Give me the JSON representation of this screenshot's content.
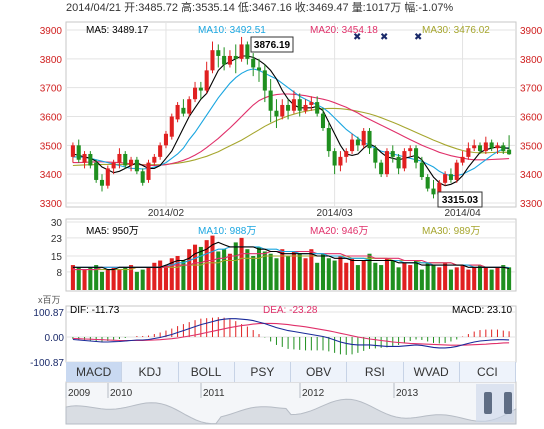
{
  "header": {
    "date": "2014/04/21",
    "open_label": "开:",
    "open": "3485.72",
    "high_label": "高:",
    "high": "3535.14",
    "low_label": "低:",
    "low": "3467.16",
    "close_label": "收:",
    "close": "3469.47",
    "volume_label": "量:",
    "volume": "1017万",
    "change_label": "幅:",
    "change": "-1.07%"
  },
  "price_legend": [
    {
      "label": "MA5: 3489.17",
      "color": "#000000"
    },
    {
      "label": "MA10: 3492.51",
      "color": "#1aa6e0"
    },
    {
      "label": "MA20: 3454.18",
      "color": "#e0306a"
    },
    {
      "label": "MA30: 3476.02",
      "color": "#a6a62e"
    }
  ],
  "volume_legend": [
    {
      "label": "MA5: 950万",
      "color": "#000000"
    },
    {
      "label": "MA10: 988万",
      "color": "#1aa6e0"
    },
    {
      "label": "MA20: 946万",
      "color": "#e0306a"
    },
    {
      "label": "MA30: 989万",
      "color": "#a6a62e"
    }
  ],
  "macd_legend": {
    "unit": "x百万",
    "dif": "DIF: -11.73",
    "dea": "DEA: -23.28",
    "macd": "MACD: 23.10"
  },
  "chart_data": {
    "type": "candlestick",
    "price_axis": {
      "ylim": [
        3300,
        3900
      ],
      "ticks": [
        3300,
        3400,
        3500,
        3600,
        3700,
        3800,
        3900
      ]
    },
    "x_ticks": [
      "2014/02",
      "2014/03",
      "2014/04"
    ],
    "annotations": {
      "max": "3876.19",
      "min": "3315.03"
    },
    "colors": {
      "up": "#e02020",
      "down": "#1f8f1f"
    },
    "candles": [
      [
        3460,
        3500,
        3440,
        3510
      ],
      [
        3500,
        3450,
        3440,
        3520
      ],
      [
        3440,
        3470,
        3420,
        3480
      ],
      [
        3470,
        3430,
        3420,
        3480
      ],
      [
        3440,
        3380,
        3370,
        3450
      ],
      [
        3380,
        3360,
        3340,
        3400
      ],
      [
        3360,
        3420,
        3350,
        3430
      ],
      [
        3420,
        3440,
        3400,
        3450
      ],
      [
        3440,
        3470,
        3420,
        3490
      ],
      [
        3470,
        3430,
        3420,
        3480
      ],
      [
        3430,
        3450,
        3410,
        3460
      ],
      [
        3450,
        3410,
        3400,
        3460
      ],
      [
        3410,
        3370,
        3360,
        3420
      ],
      [
        3380,
        3440,
        3370,
        3450
      ],
      [
        3440,
        3460,
        3430,
        3470
      ],
      [
        3460,
        3500,
        3450,
        3510
      ],
      [
        3500,
        3540,
        3490,
        3550
      ],
      [
        3530,
        3600,
        3520,
        3610
      ],
      [
        3590,
        3640,
        3580,
        3650
      ],
      [
        3630,
        3610,
        3600,
        3660
      ],
      [
        3610,
        3660,
        3600,
        3670
      ],
      [
        3660,
        3700,
        3650,
        3720
      ],
      [
        3700,
        3690,
        3660,
        3720
      ],
      [
        3690,
        3760,
        3680,
        3790
      ],
      [
        3760,
        3830,
        3750,
        3860
      ],
      [
        3830,
        3810,
        3770,
        3850
      ],
      [
        3810,
        3780,
        3760,
        3840
      ],
      [
        3780,
        3810,
        3770,
        3830
      ],
      [
        3810,
        3800,
        3750,
        3850
      ],
      [
        3800,
        3850,
        3790,
        3876
      ],
      [
        3850,
        3800,
        3780,
        3860
      ],
      [
        3800,
        3770,
        3740,
        3820
      ],
      [
        3770,
        3760,
        3720,
        3800
      ],
      [
        3760,
        3690,
        3650,
        3780
      ],
      [
        3690,
        3620,
        3580,
        3730
      ],
      [
        3620,
        3600,
        3560,
        3660
      ],
      [
        3600,
        3640,
        3590,
        3660
      ],
      [
        3640,
        3620,
        3590,
        3660
      ],
      [
        3620,
        3660,
        3610,
        3690
      ],
      [
        3660,
        3620,
        3600,
        3680
      ],
      [
        3620,
        3640,
        3610,
        3660
      ],
      [
        3640,
        3650,
        3620,
        3670
      ],
      [
        3650,
        3610,
        3600,
        3670
      ],
      [
        3610,
        3560,
        3550,
        3630
      ],
      [
        3560,
        3480,
        3460,
        3580
      ],
      [
        3480,
        3430,
        3400,
        3490
      ],
      [
        3430,
        3460,
        3410,
        3480
      ],
      [
        3460,
        3480,
        3440,
        3490
      ],
      [
        3480,
        3520,
        3470,
        3540
      ],
      [
        3520,
        3500,
        3480,
        3530
      ],
      [
        3500,
        3550,
        3490,
        3560
      ],
      [
        3550,
        3490,
        3470,
        3560
      ],
      [
        3490,
        3440,
        3420,
        3500
      ],
      [
        3440,
        3400,
        3390,
        3450
      ],
      [
        3400,
        3480,
        3390,
        3490
      ],
      [
        3480,
        3460,
        3440,
        3500
      ],
      [
        3460,
        3420,
        3400,
        3470
      ],
      [
        3420,
        3480,
        3410,
        3490
      ],
      [
        3480,
        3490,
        3460,
        3500
      ],
      [
        3490,
        3440,
        3420,
        3500
      ],
      [
        3440,
        3390,
        3380,
        3460
      ],
      [
        3390,
        3350,
        3340,
        3400
      ],
      [
        3350,
        3330,
        3316,
        3380
      ],
      [
        3330,
        3370,
        3320,
        3380
      ],
      [
        3370,
        3400,
        3360,
        3410
      ],
      [
        3400,
        3380,
        3370,
        3420
      ],
      [
        3380,
        3440,
        3370,
        3450
      ],
      [
        3440,
        3460,
        3430,
        3480
      ],
      [
        3460,
        3490,
        3450,
        3510
      ],
      [
        3490,
        3500,
        3480,
        3520
      ],
      [
        3500,
        3480,
        3470,
        3510
      ],
      [
        3480,
        3510,
        3470,
        3530
      ],
      [
        3510,
        3490,
        3480,
        3520
      ],
      [
        3490,
        3500,
        3470,
        3510
      ],
      [
        3500,
        3480,
        3470,
        3510
      ],
      [
        3485,
        3469,
        3467,
        3535
      ]
    ],
    "ma5": [
      3470,
      3465,
      3460,
      3455,
      3445,
      3425,
      3415,
      3405,
      3410,
      3420,
      3430,
      3440,
      3430,
      3420,
      3420,
      3430,
      3455,
      3480,
      3520,
      3560,
      3600,
      3630,
      3660,
      3680,
      3720,
      3760,
      3780,
      3790,
      3800,
      3810,
      3810,
      3805,
      3795,
      3780,
      3760,
      3730,
      3690,
      3660,
      3640,
      3630,
      3630,
      3630,
      3635,
      3620,
      3580,
      3540,
      3500,
      3470,
      3465,
      3470,
      3490,
      3505,
      3495,
      3475,
      3460,
      3455,
      3450,
      3455,
      3460,
      3465,
      3450,
      3420,
      3390,
      3370,
      3360,
      3365,
      3375,
      3395,
      3425,
      3450,
      3475,
      3485,
      3490,
      3495,
      3492,
      3489
    ],
    "ma10": [
      3460,
      3460,
      3458,
      3455,
      3450,
      3445,
      3440,
      3435,
      3430,
      3425,
      3420,
      3420,
      3418,
      3420,
      3425,
      3430,
      3440,
      3455,
      3470,
      3490,
      3520,
      3545,
      3575,
      3605,
      3635,
      3665,
      3690,
      3715,
      3735,
      3750,
      3760,
      3765,
      3760,
      3750,
      3740,
      3730,
      3715,
      3700,
      3685,
      3670,
      3660,
      3650,
      3640,
      3630,
      3615,
      3595,
      3575,
      3555,
      3540,
      3525,
      3510,
      3500,
      3490,
      3480,
      3475,
      3470,
      3465,
      3460,
      3455,
      3450,
      3445,
      3435,
      3425,
      3410,
      3400,
      3395,
      3395,
      3400,
      3410,
      3420,
      3435,
      3450,
      3465,
      3478,
      3488,
      3492
    ],
    "ma20": [
      3440,
      3440,
      3441,
      3442,
      3443,
      3443,
      3442,
      3441,
      3440,
      3438,
      3436,
      3434,
      3432,
      3430,
      3430,
      3431,
      3433,
      3437,
      3442,
      3448,
      3456,
      3466,
      3478,
      3492,
      3508,
      3524,
      3542,
      3560,
      3580,
      3600,
      3620,
      3640,
      3655,
      3665,
      3672,
      3676,
      3678,
      3678,
      3677,
      3675,
      3672,
      3668,
      3664,
      3660,
      3655,
      3648,
      3640,
      3632,
      3622,
      3612,
      3600,
      3590,
      3580,
      3570,
      3560,
      3550,
      3540,
      3530,
      3520,
      3510,
      3500,
      3492,
      3484,
      3476,
      3470,
      3464,
      3460,
      3456,
      3452,
      3450,
      3450,
      3450,
      3451,
      3452,
      3453,
      3454
    ],
    "ma30": [
      3430,
      3431,
      3432,
      3433,
      3433,
      3434,
      3434,
      3434,
      3434,
      3434,
      3434,
      3434,
      3433,
      3433,
      3433,
      3433,
      3434,
      3436,
      3438,
      3441,
      3445,
      3450,
      3456,
      3462,
      3470,
      3478,
      3488,
      3498,
      3508,
      3518,
      3530,
      3542,
      3554,
      3566,
      3576,
      3586,
      3594,
      3602,
      3608,
      3614,
      3618,
      3622,
      3625,
      3627,
      3628,
      3628,
      3627,
      3625,
      3622,
      3618,
      3614,
      3609,
      3603,
      3596,
      3588,
      3580,
      3572,
      3563,
      3554,
      3545,
      3536,
      3527,
      3518,
      3510,
      3502,
      3495,
      3488,
      3482,
      3478,
      3475,
      3474,
      3474,
      3475,
      3476,
      3476,
      3476
    ],
    "volume_axis": {
      "ylim": [
        0,
        30
      ],
      "ticks": [
        8,
        15,
        23,
        30
      ]
    },
    "volumes": [
      11,
      10,
      9,
      10,
      11,
      8,
      9,
      10,
      9,
      10,
      11,
      8,
      9,
      10,
      12,
      13,
      11,
      14,
      15,
      13,
      18,
      20,
      19,
      22,
      24,
      17,
      18,
      16,
      21,
      23,
      18,
      15,
      19,
      17,
      16,
      14,
      18,
      15,
      17,
      16,
      14,
      18,
      12,
      16,
      14,
      13,
      15,
      12,
      14,
      11,
      13,
      16,
      12,
      11,
      14,
      13,
      10,
      12,
      11,
      13,
      9,
      12,
      11,
      10,
      12,
      9,
      10,
      11,
      9,
      10,
      11,
      10,
      9,
      10,
      11,
      10
    ],
    "vol_ma5": [
      10,
      10,
      10,
      10,
      10,
      10,
      9,
      9,
      10,
      10,
      10,
      10,
      10,
      10,
      10,
      10,
      11,
      12,
      13,
      13,
      14,
      16,
      17,
      18,
      20,
      21,
      20,
      19,
      19,
      19,
      19,
      19,
      18,
      18,
      17,
      17,
      16,
      16,
      16,
      16,
      16,
      16,
      15,
      15,
      15,
      14,
      14,
      14,
      13,
      13,
      13,
      13,
      13,
      13,
      13,
      13,
      12,
      12,
      12,
      12,
      11,
      11,
      11,
      11,
      11,
      11,
      11,
      11,
      10,
      10,
      10,
      10,
      10,
      10,
      10,
      9.5
    ],
    "vol_ma10": [
      10,
      10,
      10,
      10,
      10,
      10,
      10,
      10,
      10,
      10,
      10,
      10,
      10,
      10,
      10,
      10,
      11,
      11,
      12,
      12,
      13,
      14,
      15,
      16,
      17,
      18,
      18,
      19,
      19,
      19,
      19,
      19,
      19,
      18,
      18,
      18,
      17,
      17,
      17,
      16,
      16,
      16,
      16,
      16,
      15,
      15,
      15,
      14,
      14,
      14,
      14,
      13,
      13,
      13,
      13,
      13,
      13,
      12,
      12,
      12,
      12,
      12,
      11,
      11,
      11,
      11,
      11,
      11,
      11,
      10,
      10,
      10,
      10,
      10,
      10,
      9.9
    ],
    "vol_ma20": [
      9,
      9,
      9,
      9,
      9,
      10,
      10,
      10,
      10,
      10,
      10,
      10,
      10,
      10,
      10,
      10,
      10,
      11,
      11,
      11,
      11,
      12,
      12,
      13,
      13,
      14,
      14,
      15,
      15,
      16,
      16,
      16,
      16,
      16,
      17,
      17,
      17,
      17,
      17,
      17,
      17,
      17,
      16,
      16,
      16,
      16,
      16,
      15,
      15,
      15,
      15,
      15,
      14,
      14,
      14,
      14,
      14,
      13,
      13,
      13,
      13,
      12,
      12,
      12,
      12,
      12,
      11,
      11,
      11,
      11,
      11,
      10,
      10,
      10,
      10,
      9.5
    ],
    "vol_ma30": [
      9,
      9,
      9,
      9,
      9,
      9,
      9,
      9,
      9,
      9,
      9,
      10,
      10,
      10,
      10,
      10,
      10,
      10,
      10,
      11,
      11,
      11,
      11,
      12,
      12,
      12,
      13,
      13,
      13,
      14,
      14,
      14,
      14,
      15,
      15,
      15,
      15,
      15,
      15,
      15,
      15,
      15,
      15,
      15,
      15,
      15,
      15,
      15,
      14,
      14,
      14,
      14,
      14,
      14,
      14,
      13,
      13,
      13,
      13,
      13,
      12,
      12,
      12,
      12,
      12,
      12,
      11,
      11,
      11,
      11,
      11,
      10,
      10,
      10,
      10,
      9.9
    ],
    "macd_axis": {
      "ylim": [
        -100.87,
        100.87
      ],
      "ticks": [
        "100.87",
        "0.00",
        "-100.87"
      ]
    },
    "dif": [
      -10,
      -12,
      -14,
      -16,
      -18,
      -20,
      -20,
      -19,
      -18,
      -16,
      -14,
      -12,
      -12,
      -10,
      -6,
      -2,
      4,
      10,
      18,
      26,
      34,
      42,
      50,
      56,
      62,
      68,
      72,
      74,
      74,
      72,
      70,
      66,
      60,
      54,
      46,
      38,
      32,
      26,
      22,
      18,
      14,
      10,
      6,
      2,
      -4,
      -12,
      -20,
      -26,
      -30,
      -32,
      -32,
      -32,
      -34,
      -36,
      -38,
      -38,
      -38,
      -36,
      -34,
      -32,
      -34,
      -38,
      -42,
      -44,
      -44,
      -42,
      -38,
      -32,
      -26,
      -20,
      -16,
      -14,
      -12,
      -11,
      -11,
      -11.73
    ],
    "dea": [
      -6,
      -7,
      -8,
      -9,
      -10,
      -11,
      -12,
      -13,
      -14,
      -14,
      -14,
      -14,
      -14,
      -13,
      -12,
      -11,
      -9,
      -7,
      -4,
      0,
      4,
      8,
      13,
      18,
      23,
      28,
      33,
      38,
      42,
      46,
      49,
      52,
      54,
      55,
      55,
      54,
      52,
      50,
      47,
      44,
      41,
      37,
      33,
      29,
      25,
      20,
      15,
      10,
      5,
      0,
      -4,
      -8,
      -11,
      -14,
      -17,
      -20,
      -22,
      -24,
      -26,
      -27,
      -28,
      -29,
      -30,
      -31,
      -32,
      -33,
      -33,
      -33,
      -32,
      -31,
      -30,
      -29,
      -27,
      -26,
      -24,
      -23.28
    ],
    "macd_hist": [
      -8,
      -10,
      -12,
      -14,
      -16,
      -18,
      -16,
      -12,
      -8,
      -4,
      0,
      4,
      4,
      6,
      12,
      18,
      26,
      34,
      44,
      52,
      60,
      68,
      74,
      76,
      78,
      80,
      78,
      72,
      64,
      52,
      42,
      28,
      12,
      -2,
      -18,
      -32,
      -40,
      -48,
      -50,
      -52,
      -54,
      -54,
      -54,
      -54,
      -58,
      -64,
      -70,
      -72,
      -70,
      -64,
      -56,
      -48,
      -46,
      -44,
      -42,
      -36,
      -32,
      -24,
      -16,
      -10,
      -12,
      -18,
      -24,
      -26,
      -24,
      -18,
      -10,
      2,
      12,
      22,
      28,
      30,
      30,
      30,
      26,
      23.1
    ]
  },
  "tabs": [
    "MACD",
    "KDJ",
    "BOLL",
    "PSY",
    "OBV",
    "RSI",
    "WVAD",
    "CCI"
  ],
  "timeline": {
    "years": [
      "2009",
      "2010",
      "2011",
      "2012",
      "2013"
    ]
  }
}
